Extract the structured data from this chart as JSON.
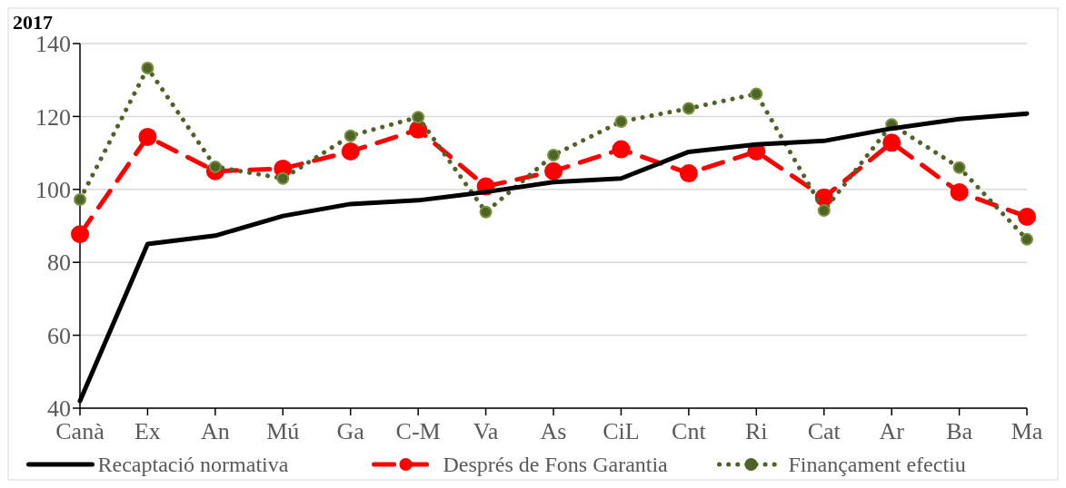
{
  "chart_data": {
    "type": "line",
    "title": "2017",
    "categories": [
      "Canà",
      "Ex",
      "An",
      "Mú",
      "Ga",
      "C-M",
      "Va",
      "As",
      "CiL",
      "Cnt",
      "Ri",
      "Cat",
      "Ar",
      "Ba",
      "Ma"
    ],
    "ylim": [
      40,
      140
    ],
    "yticks": [
      40,
      60,
      80,
      100,
      120,
      140
    ],
    "grid": "y",
    "legend": "bottom",
    "series": [
      {
        "name": "Recaptació normativa",
        "color": "#000000",
        "marker": "none",
        "line_style": "solid",
        "values": [
          42,
          85,
          87.3,
          92.7,
          96,
          97,
          99.3,
          102,
          103,
          110.3,
          112.3,
          113.3,
          116.7,
          119.3,
          120.8
        ]
      },
      {
        "name": "Després de Fons Garantia",
        "color": "#ff0000",
        "marker": "circle",
        "line_style": "dashed",
        "values": [
          87.7,
          114.4,
          105,
          105.7,
          110.4,
          116.4,
          100.8,
          105,
          111,
          104.4,
          110.4,
          97.8,
          112.8,
          99.2,
          92.5
        ]
      },
      {
        "name": "Finançament efectiu",
        "color": "#4f6228",
        "marker": "circle",
        "line_style": "dotted",
        "values": [
          97.2,
          133.3,
          106.2,
          103,
          114.7,
          119.8,
          93.8,
          109.4,
          118.6,
          122.2,
          126.2,
          94.2,
          117.8,
          106,
          86.3
        ]
      }
    ]
  }
}
